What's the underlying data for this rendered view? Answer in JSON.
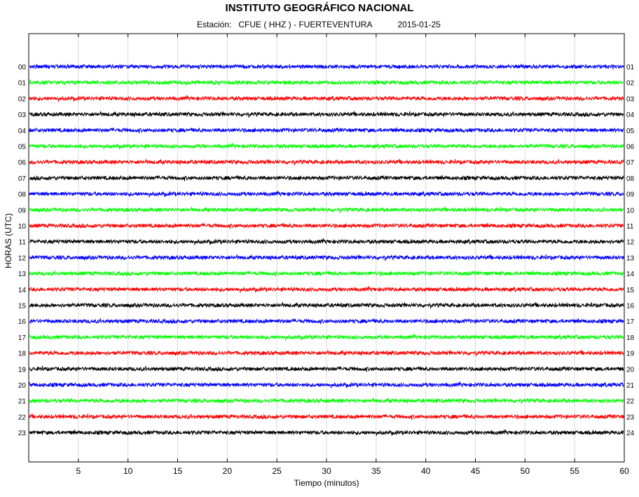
{
  "header": {
    "title": "INSTITUTO GEOGRÁFICO NACIONAL",
    "station_label": "Estación:",
    "station": "CFUE ( HHZ ) - FUERTEVENTURA",
    "date": "2015-01-25"
  },
  "chart_data": {
    "type": "line",
    "title": "INSTITUTO GEOGRÁFICO NACIONAL",
    "xlabel": "Tiempo (minutos)",
    "ylabel": "HORAS (UTC)",
    "xlim": [
      0,
      60
    ],
    "x_ticks": [
      5,
      10,
      15,
      20,
      25,
      30,
      35,
      40,
      45,
      50,
      55,
      60
    ],
    "grid": "vertical",
    "left_tick_labels": [
      "00",
      "01",
      "02",
      "03",
      "04",
      "05",
      "06",
      "07",
      "08",
      "09",
      "10",
      "11",
      "12",
      "13",
      "14",
      "15",
      "16",
      "17",
      "18",
      "19",
      "20",
      "21",
      "22",
      "23"
    ],
    "right_tick_labels": [
      "01",
      "02",
      "03",
      "04",
      "05",
      "06",
      "07",
      "08",
      "09",
      "10",
      "11",
      "12",
      "13",
      "14",
      "15",
      "16",
      "17",
      "18",
      "19",
      "20",
      "21",
      "22",
      "23",
      "24"
    ],
    "colors": [
      "#0000ff",
      "#00ff00",
      "#ff0000",
      "#000000"
    ],
    "traces": [
      {
        "hour": "00",
        "color": "#0000ff"
      },
      {
        "hour": "01",
        "color": "#00ff00"
      },
      {
        "hour": "02",
        "color": "#ff0000"
      },
      {
        "hour": "03",
        "color": "#000000"
      },
      {
        "hour": "04",
        "color": "#0000ff"
      },
      {
        "hour": "05",
        "color": "#00ff00"
      },
      {
        "hour": "06",
        "color": "#ff0000"
      },
      {
        "hour": "07",
        "color": "#000000"
      },
      {
        "hour": "08",
        "color": "#0000ff"
      },
      {
        "hour": "09",
        "color": "#00ff00"
      },
      {
        "hour": "10",
        "color": "#ff0000"
      },
      {
        "hour": "11",
        "color": "#000000"
      },
      {
        "hour": "12",
        "color": "#0000ff"
      },
      {
        "hour": "13",
        "color": "#00ff00"
      },
      {
        "hour": "14",
        "color": "#ff0000"
      },
      {
        "hour": "15",
        "color": "#000000"
      },
      {
        "hour": "16",
        "color": "#0000ff"
      },
      {
        "hour": "17",
        "color": "#00ff00"
      },
      {
        "hour": "18",
        "color": "#ff0000"
      },
      {
        "hour": "19",
        "color": "#000000"
      },
      {
        "hour": "20",
        "color": "#0000ff"
      },
      {
        "hour": "21",
        "color": "#00ff00"
      },
      {
        "hour": "22",
        "color": "#ff0000"
      },
      {
        "hour": "23",
        "color": "#000000"
      }
    ]
  }
}
